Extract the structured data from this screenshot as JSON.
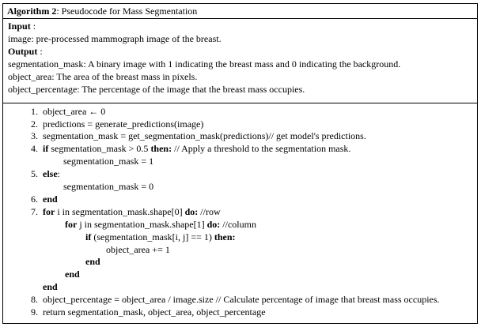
{
  "algorithm": {
    "label": "Algorithm 2",
    "title": ": Pseudocode for Mass Segmentation"
  },
  "io": {
    "input_heading": "Input",
    "input_colon": " :",
    "input_lines": [
      "image: pre-processed mammograph image of the breast."
    ],
    "output_heading": "Output",
    "output_colon": " :",
    "output_lines": [
      "segmentation_mask: A binary image with 1 indicating the breast mass and 0 indicating the background.",
      "object_area: The area of the breast mass in pixels.",
      "object_percentage: The percentage of the image that the breast mass occupies."
    ]
  },
  "code": {
    "l1": {
      "num": "1.",
      "text": "object_area ← 0"
    },
    "l2": {
      "num": "2.",
      "text": "predictions = generate_predictions(image)"
    },
    "l3": {
      "num": "3.",
      "text": "segmentation_mask = get_segmentation_mask(predictions)// get model's predictions."
    },
    "l4": {
      "num": "4.",
      "kw_if": "if",
      "cond": " segmentation_mask > 0.5 ",
      "kw_then": "then:",
      "comment": " // Apply a threshold to the segmentation mask."
    },
    "l4b": {
      "text": "segmentation_mask = 1"
    },
    "l5": {
      "num": "5.",
      "kw": "else",
      "colon": ":"
    },
    "l5b": {
      "text": "segmentation_mask = 0"
    },
    "l6": {
      "num": "6.",
      "kw": "end"
    },
    "l7": {
      "num": "7.",
      "kw_for": "for",
      "range": " i in segmentation_mask.shape[0] ",
      "kw_do": "do:",
      "comment": " //row"
    },
    "l7b": {
      "kw_for": "for",
      "range": " j in segmentation_mask.shape[1] ",
      "kw_do": "do:",
      "comment": " //column"
    },
    "l7c": {
      "kw_if": "if",
      "cond": " (segmentation_mask[i, j] == 1) ",
      "kw_then": "then:"
    },
    "l7d": {
      "text": "object_area += 1"
    },
    "l7e": {
      "kw": "end"
    },
    "l7f": {
      "kw": "end"
    },
    "l7g": {
      "kw": "end"
    },
    "l8": {
      "num": "8.",
      "text": "object_percentage = object_area / image.size // Calculate percentage of image that breast mass occupies."
    },
    "l9": {
      "num": "9.",
      "text": "return segmentation_mask, object_area, object_percentage"
    }
  }
}
